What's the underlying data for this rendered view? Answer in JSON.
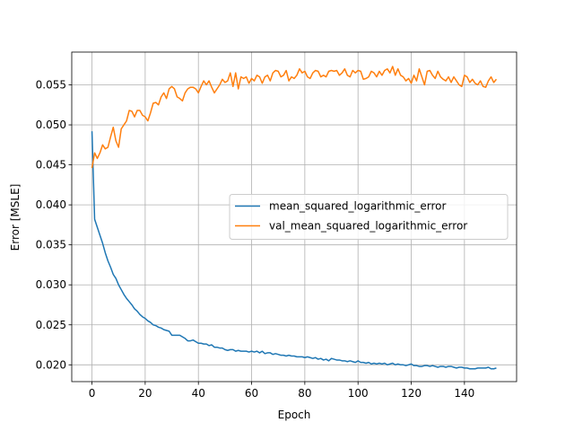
{
  "chart_data": {
    "type": "line",
    "xlabel": "Epoch",
    "ylabel": "Error [MSLE]",
    "x": [
      0,
      1,
      2,
      3,
      4,
      5,
      6,
      7,
      8,
      9,
      10,
      11,
      12,
      13,
      14,
      15,
      16,
      17,
      18,
      19,
      20,
      21,
      22,
      23,
      24,
      25,
      26,
      27,
      28,
      29,
      30,
      31,
      32,
      33,
      34,
      35,
      36,
      37,
      38,
      39,
      40,
      41,
      42,
      43,
      44,
      45,
      46,
      47,
      48,
      49,
      50,
      51,
      52,
      53,
      54,
      55,
      56,
      57,
      58,
      59,
      60,
      61,
      62,
      63,
      64,
      65,
      66,
      67,
      68,
      69,
      70,
      71,
      72,
      73,
      74,
      75,
      76,
      77,
      78,
      79,
      80,
      81,
      82,
      83,
      84,
      85,
      86,
      87,
      88,
      89,
      90,
      91,
      92,
      93,
      94,
      95,
      96,
      97,
      98,
      99,
      100,
      101,
      102,
      103,
      104,
      105,
      106,
      107,
      108,
      109,
      110,
      111,
      112,
      113,
      114,
      115,
      116,
      117,
      118,
      119,
      120,
      121,
      122,
      123,
      124,
      125,
      126,
      127,
      128,
      129,
      130,
      131,
      132,
      133,
      134,
      135,
      136,
      137,
      138,
      139,
      140,
      141,
      142,
      143,
      144,
      145,
      146,
      147,
      148,
      149,
      150,
      151,
      152
    ],
    "series": [
      {
        "name": "mean_squared_logarithmic_error",
        "color": "#1f77b4",
        "values": [
          0.0492,
          0.0382,
          0.0372,
          0.0362,
          0.0352,
          0.034,
          0.033,
          0.0322,
          0.0313,
          0.0308,
          0.03,
          0.0294,
          0.0288,
          0.0283,
          0.0279,
          0.0275,
          0.027,
          0.0267,
          0.0263,
          0.026,
          0.0258,
          0.0255,
          0.0253,
          0.025,
          0.0249,
          0.0247,
          0.0246,
          0.0244,
          0.0243,
          0.0242,
          0.0237,
          0.0237,
          0.0237,
          0.0237,
          0.0235,
          0.0233,
          0.023,
          0.023,
          0.0231,
          0.0229,
          0.0227,
          0.0227,
          0.0226,
          0.0226,
          0.0224,
          0.0225,
          0.0222,
          0.0222,
          0.0221,
          0.0221,
          0.0219,
          0.0218,
          0.0219,
          0.0219,
          0.0217,
          0.0218,
          0.0217,
          0.0217,
          0.0217,
          0.0216,
          0.0217,
          0.0216,
          0.0217,
          0.0215,
          0.0217,
          0.0214,
          0.0215,
          0.0215,
          0.0213,
          0.0214,
          0.0213,
          0.0212,
          0.0212,
          0.0211,
          0.0212,
          0.0211,
          0.0211,
          0.021,
          0.021,
          0.021,
          0.0209,
          0.021,
          0.0209,
          0.0208,
          0.0209,
          0.0207,
          0.0208,
          0.0206,
          0.0207,
          0.0205,
          0.0208,
          0.0207,
          0.0206,
          0.0206,
          0.0205,
          0.0205,
          0.0204,
          0.0205,
          0.0204,
          0.0203,
          0.0205,
          0.0203,
          0.0203,
          0.0202,
          0.0203,
          0.0201,
          0.0202,
          0.0201,
          0.0202,
          0.0201,
          0.0202,
          0.02,
          0.0201,
          0.0202,
          0.02,
          0.0201,
          0.02,
          0.02,
          0.0199,
          0.02,
          0.0201,
          0.0199,
          0.0199,
          0.0198,
          0.0198,
          0.0199,
          0.0199,
          0.0198,
          0.0199,
          0.0198,
          0.0197,
          0.0198,
          0.0198,
          0.0197,
          0.0198,
          0.0198,
          0.0197,
          0.0196,
          0.0197,
          0.0197,
          0.0196,
          0.0196,
          0.0195,
          0.0195,
          0.0195,
          0.0196,
          0.0196,
          0.0196,
          0.0196,
          0.0197,
          0.0195,
          0.0195,
          0.0196
        ]
      },
      {
        "name": "val_mean_squared_logarithmic_error",
        "color": "#ff7f0e",
        "values": [
          0.0446,
          0.0465,
          0.0458,
          0.0465,
          0.0475,
          0.047,
          0.0472,
          0.0485,
          0.0497,
          0.048,
          0.0472,
          0.0495,
          0.05,
          0.0505,
          0.0518,
          0.0517,
          0.051,
          0.0518,
          0.0518,
          0.0512,
          0.051,
          0.0505,
          0.0515,
          0.0527,
          0.0528,
          0.0525,
          0.0535,
          0.054,
          0.0533,
          0.0545,
          0.0548,
          0.0545,
          0.0535,
          0.0533,
          0.053,
          0.054,
          0.0545,
          0.0547,
          0.0547,
          0.0545,
          0.054,
          0.0548,
          0.0555,
          0.055,
          0.0555,
          0.0547,
          0.054,
          0.0545,
          0.055,
          0.0557,
          0.0553,
          0.0555,
          0.0565,
          0.0548,
          0.0565,
          0.0545,
          0.056,
          0.0558,
          0.056,
          0.0552,
          0.0558,
          0.0555,
          0.0562,
          0.056,
          0.0552,
          0.056,
          0.0562,
          0.0555,
          0.0565,
          0.0568,
          0.0567,
          0.056,
          0.0562,
          0.0568,
          0.0555,
          0.056,
          0.0558,
          0.0562,
          0.057,
          0.0565,
          0.0567,
          0.056,
          0.0558,
          0.0565,
          0.0568,
          0.0567,
          0.056,
          0.0562,
          0.056,
          0.0567,
          0.0568,
          0.0567,
          0.0568,
          0.0562,
          0.0565,
          0.057,
          0.0562,
          0.056,
          0.0568,
          0.0565,
          0.0568,
          0.0567,
          0.0557,
          0.0558,
          0.056,
          0.0567,
          0.0565,
          0.056,
          0.0567,
          0.0562,
          0.0568,
          0.057,
          0.0565,
          0.0573,
          0.0562,
          0.057,
          0.0562,
          0.056,
          0.0555,
          0.0558,
          0.0552,
          0.0562,
          0.0555,
          0.057,
          0.056,
          0.055,
          0.0567,
          0.0568,
          0.0562,
          0.0558,
          0.0567,
          0.056,
          0.0557,
          0.0555,
          0.056,
          0.0553,
          0.056,
          0.0555,
          0.055,
          0.0548,
          0.0562,
          0.056,
          0.0553,
          0.0557,
          0.0552,
          0.055,
          0.0555,
          0.0548,
          0.0547,
          0.0555,
          0.056,
          0.0553,
          0.0557
        ]
      }
    ],
    "xlim": [
      -7.6,
      159.6
    ],
    "ylim": [
      0.0179,
      0.0591
    ],
    "xticks": [
      0,
      20,
      40,
      60,
      80,
      100,
      120,
      140
    ],
    "yticks": [
      {
        "value": 0.02,
        "label": "0.020"
      },
      {
        "value": 0.025,
        "label": "0.025"
      },
      {
        "value": 0.03,
        "label": "0.030"
      },
      {
        "value": 0.035,
        "label": "0.035"
      },
      {
        "value": 0.04,
        "label": "0.040"
      },
      {
        "value": 0.045,
        "label": "0.045"
      },
      {
        "value": 0.05,
        "label": "0.050"
      },
      {
        "value": 0.055,
        "label": "0.055"
      }
    ],
    "grid": true,
    "legend": "center right"
  }
}
